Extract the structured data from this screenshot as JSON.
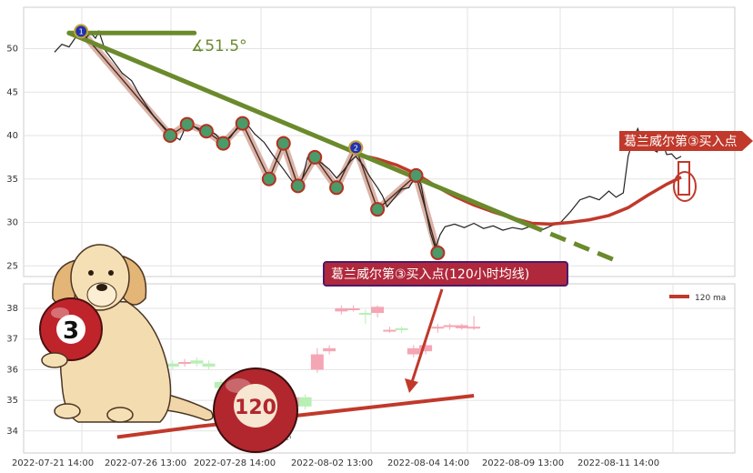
{
  "chart_data": [
    {
      "type": "line",
      "panel": "top",
      "ylim": [
        23.5,
        54
      ],
      "yticks": [
        "25",
        "30",
        "35",
        "40",
        "45",
        "50"
      ],
      "xlabels": [
        "2022-07-21 14:00",
        "2022-07-26 13:00",
        "2022-07-28 14:00",
        "2022-08-02 13:00",
        "2022-08-04 14:00",
        "2022-08-09 13:00",
        "2022-08-11 14:00"
      ],
      "price_series": [
        [
          0,
          49.6
        ],
        [
          1.5,
          50.5
        ],
        [
          3,
          50.2
        ],
        [
          4.5,
          51.4
        ],
        [
          6,
          51.0
        ],
        [
          7.5,
          51.8
        ],
        [
          8.5,
          51.2
        ],
        [
          9.2,
          52.0
        ],
        [
          10.5,
          49.8
        ],
        [
          12,
          48.7
        ],
        [
          14,
          47.2
        ],
        [
          16,
          46.3
        ],
        [
          17.5,
          44.8
        ],
        [
          19,
          43.5
        ],
        [
          20.5,
          42.3
        ],
        [
          22,
          41.4
        ],
        [
          24,
          40.2
        ],
        [
          26,
          39.5
        ],
        [
          27.5,
          41.4
        ],
        [
          29,
          41.0
        ],
        [
          30.5,
          40.4
        ],
        [
          32,
          40.6
        ],
        [
          33.5,
          40.1
        ],
        [
          35,
          39.1
        ],
        [
          36.5,
          39.8
        ],
        [
          38,
          41.0
        ],
        [
          39.5,
          41.6
        ],
        [
          41.5,
          40.2
        ],
        [
          43.5,
          39.2
        ],
        [
          45.5,
          37.6
        ],
        [
          47.5,
          36.1
        ],
        [
          49.5,
          34.6
        ],
        [
          50.5,
          33.8
        ],
        [
          51.5,
          35.2
        ],
        [
          52.5,
          37.5
        ],
        [
          54,
          37.3
        ],
        [
          55.5,
          36.8
        ],
        [
          57,
          36.1
        ],
        [
          58.5,
          35.1
        ],
        [
          60,
          36.0
        ],
        [
          61.5,
          37.1
        ],
        [
          62.5,
          37.6
        ],
        [
          64,
          36.6
        ],
        [
          65.5,
          35.2
        ],
        [
          67,
          34.0
        ],
        [
          68,
          33.1
        ],
        [
          69,
          31.8
        ],
        [
          70.5,
          32.8
        ],
        [
          72,
          33.8
        ],
        [
          73.5,
          34.0
        ],
        [
          75,
          35.4
        ],
        [
          76,
          34.4
        ],
        [
          77,
          31.5
        ],
        [
          78,
          28.8
        ],
        [
          79,
          27.0
        ],
        [
          80,
          28.6
        ],
        [
          81,
          29.5
        ],
        [
          83,
          29.8
        ],
        [
          85,
          29.4
        ],
        [
          87,
          29.9
        ],
        [
          89,
          29.3
        ],
        [
          91,
          29.6
        ],
        [
          93,
          29.1
        ],
        [
          95,
          29.4
        ],
        [
          97,
          29.2
        ],
        [
          99,
          29.6
        ],
        [
          101,
          29.1
        ],
        [
          103,
          29.6
        ],
        [
          105,
          30.0
        ],
        [
          107,
          31.2
        ],
        [
          109,
          32.6
        ],
        [
          111,
          33.0
        ],
        [
          113,
          32.6
        ],
        [
          115,
          33.6
        ],
        [
          116.5,
          32.9
        ],
        [
          118,
          33.4
        ],
        [
          119,
          37.6
        ],
        [
          120,
          39.5
        ],
        [
          121,
          40.8
        ],
        [
          122,
          39.2
        ],
        [
          123.5,
          38.6
        ],
        [
          125,
          38.1
        ],
        [
          126,
          39.4
        ],
        [
          127,
          37.8
        ],
        [
          128,
          37.9
        ],
        [
          129,
          37.3
        ],
        [
          130,
          37.6
        ]
      ],
      "ma_line": [
        [
          63,
          37.8
        ],
        [
          67,
          37.3
        ],
        [
          71,
          36.6
        ],
        [
          75,
          35.6
        ],
        [
          79,
          34.2
        ],
        [
          83,
          33.0
        ],
        [
          87,
          32.0
        ],
        [
          91,
          31.2
        ],
        [
          95,
          30.5
        ],
        [
          99,
          29.9
        ],
        [
          103,
          29.8
        ],
        [
          107,
          30.0
        ],
        [
          111,
          30.3
        ],
        [
          115,
          30.8
        ],
        [
          119,
          31.7
        ],
        [
          123,
          33.1
        ],
        [
          127,
          34.4
        ],
        [
          130,
          35.2
        ]
      ],
      "trend_line": [
        [
          3,
          51.8
        ],
        [
          98,
          29.8
        ]
      ],
      "trend_extension": [
        [
          98,
          29.8
        ],
        [
          116.5,
          25.6
        ]
      ],
      "angle_line": [
        [
          3,
          51.8
        ],
        [
          29,
          51.8
        ]
      ],
      "angle_label": "∡51.5°",
      "swing_points": [
        [
          5.5,
          52.0
        ],
        [
          24,
          40.0
        ],
        [
          27.5,
          41.3
        ],
        [
          31.5,
          40.5
        ],
        [
          35,
          39.1
        ],
        [
          39,
          41.4
        ],
        [
          44.5,
          35.0
        ],
        [
          47.5,
          39.1
        ],
        [
          50.5,
          34.2
        ],
        [
          54,
          37.5
        ],
        [
          58.5,
          34.0
        ],
        [
          62.5,
          38.6
        ],
        [
          67,
          31.5
        ],
        [
          75,
          35.4
        ],
        [
          79.5,
          26.5
        ]
      ],
      "marker_numbers": [
        "1",
        "2"
      ],
      "markers": [
        [
          5.5,
          52.0
        ],
        [
          62.5,
          38.6
        ]
      ]
    },
    {
      "type": "candlestick",
      "panel": "bottom",
      "ylim": [
        33.6,
        38.6
      ],
      "yticks": [
        "34",
        "35",
        "36",
        "37",
        "38"
      ],
      "legend": "120 ma",
      "candles": [
        [
          22,
          36.25,
          36.1,
          36.4,
          36.0
        ],
        [
          24.5,
          36.2,
          36.1,
          36.3,
          36.0
        ],
        [
          27,
          36.2,
          36.25,
          36.35,
          36.1
        ],
        [
          29.5,
          36.3,
          36.2,
          36.4,
          36.1
        ],
        [
          32,
          36.2,
          36.1,
          36.3,
          36.0
        ],
        [
          34.5,
          35.6,
          35.4,
          35.7,
          35.3
        ],
        [
          37,
          35.4,
          35.3,
          35.5,
          35.2
        ],
        [
          39.5,
          35.5,
          35.1,
          35.55,
          35.0
        ],
        [
          42,
          35.1,
          35.25,
          35.35,
          35.0
        ],
        [
          44.5,
          34.3,
          34.1,
          34.4,
          34.0
        ],
        [
          47,
          34.15,
          34.4,
          34.5,
          34.0
        ],
        [
          49.5,
          34.8,
          35.1,
          35.2,
          34.7
        ],
        [
          52,
          35.1,
          34.8,
          35.2,
          34.7
        ],
        [
          54.5,
          36.0,
          36.5,
          36.7,
          35.9
        ],
        [
          57,
          36.6,
          36.7,
          36.8,
          36.5
        ],
        [
          59.5,
          37.9,
          38.0,
          38.1,
          37.8
        ],
        [
          62,
          38.0,
          38.0,
          38.1,
          37.9
        ],
        [
          64.5,
          37.85,
          37.8,
          37.95,
          37.5
        ],
        [
          67,
          37.85,
          38.05,
          38.1,
          37.7
        ],
        [
          69.5,
          37.3,
          37.3,
          37.4,
          37.2
        ],
        [
          72,
          37.35,
          37.3,
          37.4,
          37.2
        ],
        [
          74.5,
          36.5,
          36.7,
          36.8,
          36.4
        ],
        [
          77,
          36.6,
          36.8,
          36.9,
          36.5
        ],
        [
          79.5,
          37.35,
          37.4,
          37.5,
          37.2
        ],
        [
          82,
          37.4,
          37.45,
          37.5,
          37.3
        ],
        [
          84.5,
          37.35,
          37.45,
          37.5,
          37.3
        ],
        [
          87,
          37.4,
          37.4,
          37.75,
          37.3
        ]
      ],
      "ma_line": [
        [
          13,
          33.8
        ],
        [
          30,
          34.15
        ],
        [
          50,
          34.5
        ],
        [
          87,
          35.15
        ]
      ],
      "buy_box": [
        43.8,
        34.8
      ],
      "sell_mark": [
        42.5,
        33.9
      ]
    }
  ],
  "callout_main": "葛兰威尔第③买入点(120小时均线)",
  "callout_right": "葛兰威尔第③买入点",
  "ball_big": "3",
  "ball_small": "120",
  "colors": {
    "trend": "#6a8a2c",
    "ma": "#c0392b",
    "price": "#222222",
    "up": "#f4a6b4",
    "down": "#b8efb5",
    "callout": "#c0392b",
    "marker": "#2233aa"
  }
}
